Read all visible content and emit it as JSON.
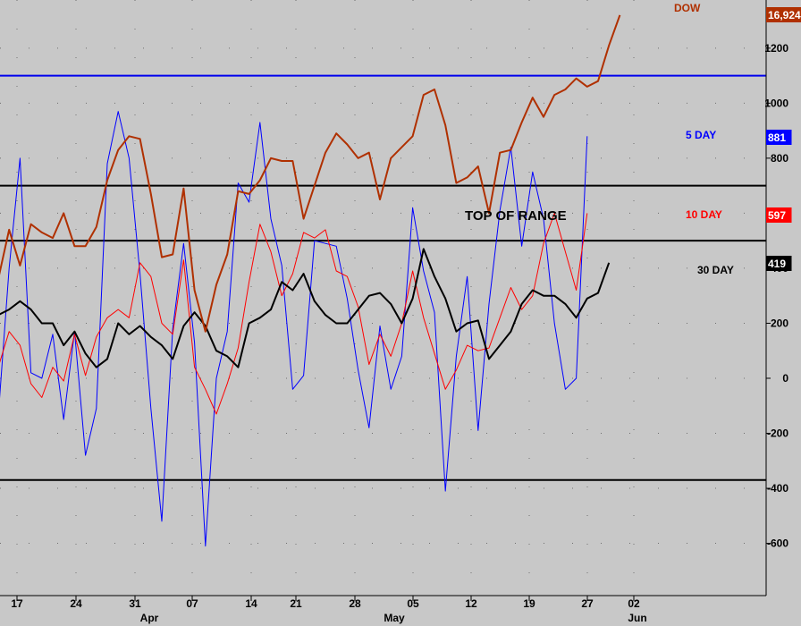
{
  "chart_data": {
    "type": "line",
    "title": "",
    "annotation": "TOP OF RANGE",
    "x_tick_labels": [
      "17",
      "24",
      "31",
      "07",
      "14",
      "21",
      "28",
      "05",
      "12",
      "19",
      "27",
      "02"
    ],
    "month_labels": [
      "Apr",
      "May",
      "Jun"
    ],
    "y_tick_labels": [
      "1200",
      "1000",
      "800",
      "600",
      "400",
      "200",
      "0",
      "-200",
      "-400",
      "-600"
    ],
    "ylim": [
      -790,
      1375
    ],
    "horizontal_lines": [
      {
        "value": 1100,
        "color": "#0000ee"
      },
      {
        "value": 700,
        "color": "#000000"
      },
      {
        "value": 500,
        "color": "#000000"
      },
      {
        "value": -370,
        "color": "#000000"
      }
    ],
    "grid": "dotted",
    "series": [
      {
        "name": "5 DAY",
        "color": "#0000ff",
        "last_value_label": "881",
        "width": 1,
        "values": [
          -140,
          400,
          800,
          20,
          0,
          160,
          -150,
          170,
          -280,
          -110,
          780,
          970,
          800,
          380,
          -110,
          -520,
          180,
          490,
          130,
          -610,
          0,
          170,
          710,
          640,
          930,
          580,
          410,
          -40,
          10,
          500,
          490,
          480,
          290,
          30,
          -180,
          190,
          -40,
          80,
          620,
          390,
          240,
          -410,
          80,
          370,
          -190,
          270,
          610,
          840,
          480,
          750,
          580,
          200,
          -40,
          0,
          880
        ]
      },
      {
        "name": "10 DAY",
        "color": "#ff0000",
        "last_value_label": "597",
        "width": 1,
        "values": [
          40,
          170,
          120,
          -20,
          -70,
          40,
          -10,
          160,
          10,
          150,
          220,
          250,
          220,
          420,
          370,
          200,
          160,
          430,
          40,
          -40,
          -130,
          -20,
          110,
          350,
          560,
          460,
          300,
          380,
          530,
          510,
          540,
          390,
          370,
          260,
          50,
          160,
          80,
          200,
          390,
          220,
          90,
          -40,
          30,
          120,
          100,
          110,
          220,
          330,
          250,
          300,
          490,
          600,
          460,
          320,
          600
        ]
      },
      {
        "name": "30 DAY",
        "color": "#000000",
        "last_value_label": "419",
        "width": 2,
        "values": [
          230,
          250,
          280,
          250,
          200,
          200,
          120,
          170,
          90,
          40,
          70,
          200,
          160,
          190,
          150,
          120,
          70,
          190,
          240,
          190,
          100,
          80,
          40,
          200,
          220,
          250,
          350,
          320,
          380,
          280,
          230,
          200,
          200,
          250,
          300,
          310,
          270,
          200,
          290,
          470,
          370,
          290,
          170,
          200,
          210,
          70,
          120,
          170,
          270,
          320,
          300,
          300,
          270,
          220,
          290,
          310,
          420
        ]
      },
      {
        "name": "DOW",
        "color": "#b03000",
        "last_value_label": "16,924",
        "width": 2,
        "values": [
          360,
          540,
          410,
          560,
          530,
          510,
          600,
          480,
          480,
          550,
          720,
          830,
          880,
          870,
          670,
          440,
          450,
          690,
          320,
          170,
          340,
          450,
          680,
          670,
          720,
          800,
          790,
          790,
          580,
          700,
          820,
          890,
          850,
          800,
          820,
          650,
          800,
          840,
          880,
          1030,
          1050,
          920,
          710,
          730,
          770,
          600,
          820,
          830,
          930,
          1020,
          950,
          1030,
          1050,
          1090,
          1060,
          1080,
          1210,
          1320
        ]
      }
    ]
  }
}
